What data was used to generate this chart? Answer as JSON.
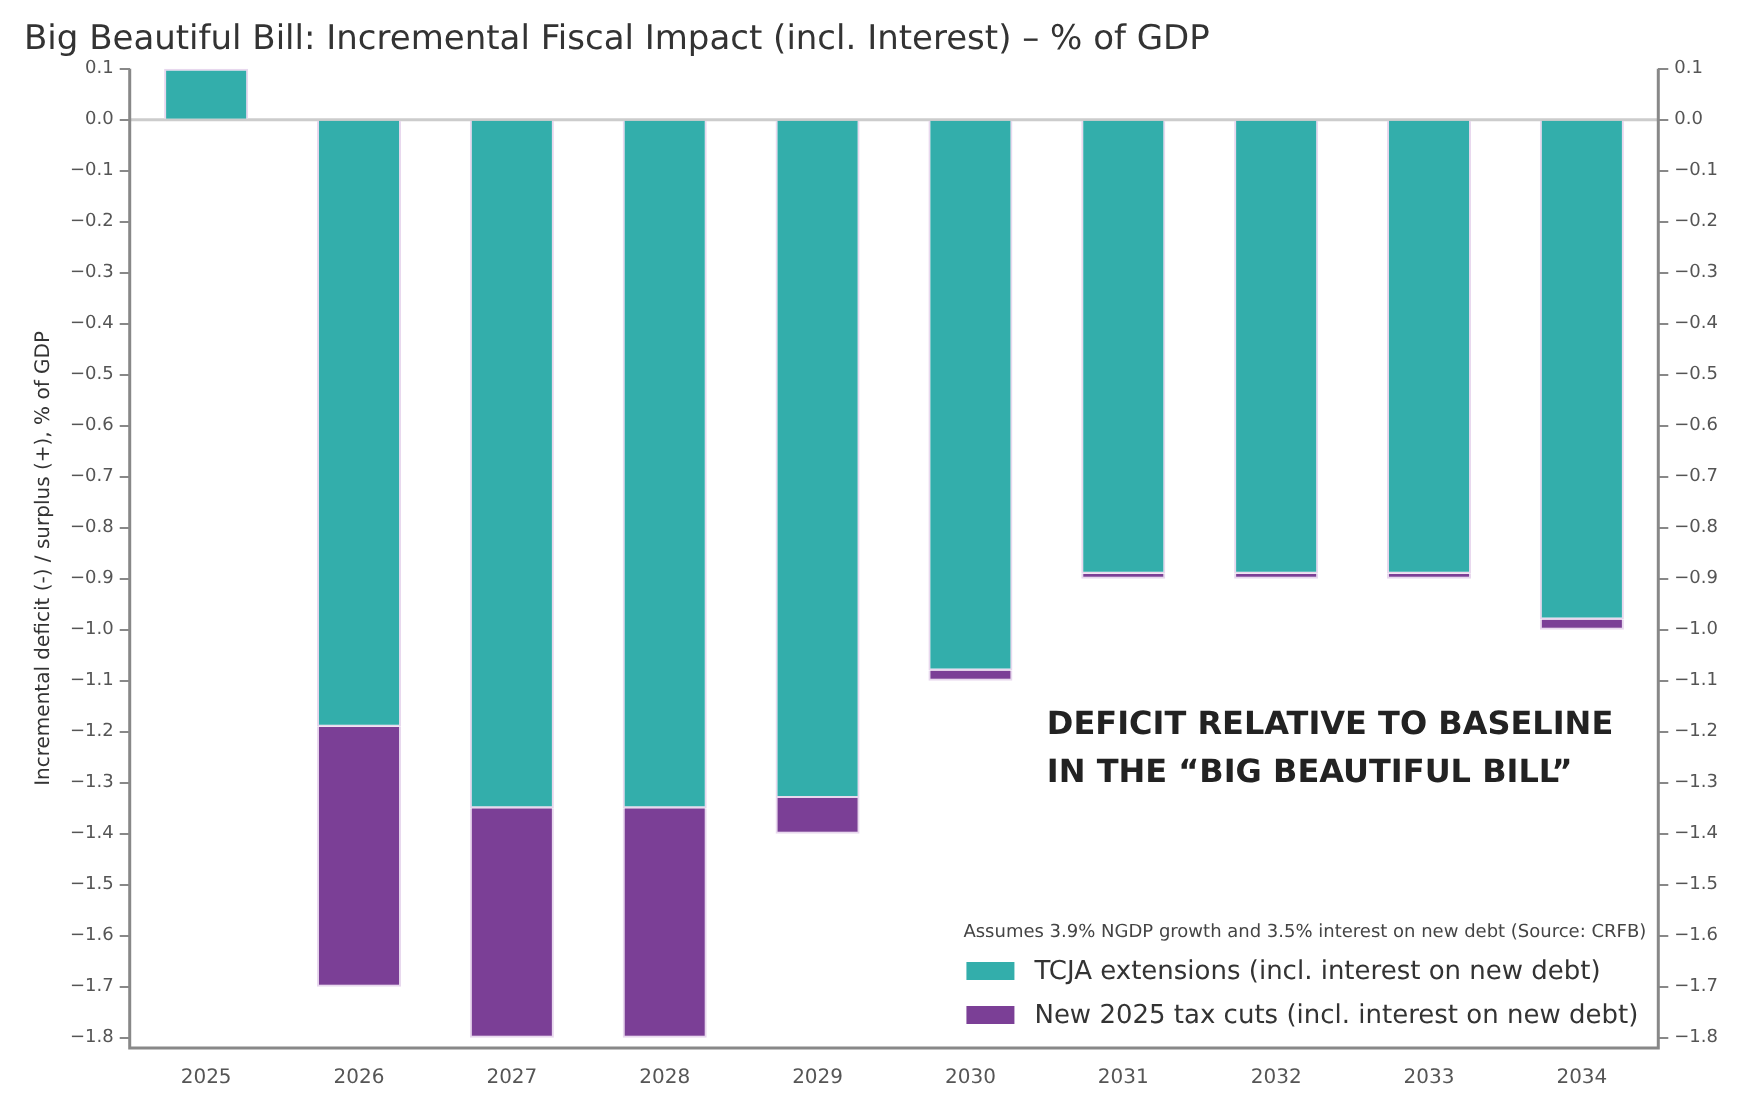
{
  "chart_data": {
    "type": "bar",
    "title": "Big Beautiful Bill: Incremental Fiscal Impact (incl. Interest) – % of GDP",
    "ylabel": "Incremental deficit (-) / surplus (+), % of GDP",
    "legend_title": "Assumes 3.9% NGDP growth and 3.5% interest on new debt (Source: CRFB)",
    "annotations": [
      "DEFICIT RELATIVE TO BASELINE\nIN THE “BIG BEAUTIFUL BILL”"
    ],
    "categories": [
      "2025",
      "2026",
      "2027",
      "2028",
      "2029",
      "2030",
      "2031",
      "2032",
      "2033",
      "2034"
    ],
    "stacked": true,
    "series": [
      {
        "name": "TCJA extensions (incl. interest on new debt)",
        "color": "#33aeab",
        "values": [
          0.1,
          -1.19,
          -1.35,
          -1.35,
          -1.33,
          -1.08,
          -0.89,
          -0.89,
          -0.89,
          -0.98
        ]
      },
      {
        "name": "New 2025 tax cuts (incl. interest on new debt)",
        "color": "#7b3f96",
        "values": [
          null,
          -0.51,
          -0.45,
          -0.45,
          -0.07,
          -0.02,
          -0.01,
          -0.01,
          -0.01,
          -0.02
        ]
      }
    ],
    "ylim": [
      -1.82,
      0.1
    ],
    "yticks": [
      {
        "value": -1.8,
        "label": "−1.8"
      },
      {
        "value": -1.7,
        "label": "−1.7"
      },
      {
        "value": -1.6,
        "label": "−1.6"
      },
      {
        "value": -1.5,
        "label": "−1.5"
      },
      {
        "value": -1.4,
        "label": "−1.4"
      },
      {
        "value": -1.3,
        "label": "−1.3"
      },
      {
        "value": -1.2,
        "label": "−1.2"
      },
      {
        "value": -1.1,
        "label": "−1.1"
      },
      {
        "value": -1.0,
        "label": "−1.0"
      },
      {
        "value": -0.9,
        "label": "−0.9"
      },
      {
        "value": -0.8,
        "label": "−0.8"
      },
      {
        "value": -0.7,
        "label": "−0.7"
      },
      {
        "value": -0.6,
        "label": "−0.6"
      },
      {
        "value": -0.5,
        "label": "−0.5"
      },
      {
        "value": -0.4,
        "label": "−0.4"
      },
      {
        "value": -0.3,
        "label": "−0.3"
      },
      {
        "value": -0.2,
        "label": "−0.2"
      },
      {
        "value": -0.1,
        "label": "−0.1"
      },
      {
        "value": 0,
        "label": "0.0"
      },
      {
        "value": 0.1,
        "label": "0.1"
      }
    ],
    "y2lim": [
      -1.82,
      0.1
    ],
    "y2ticks": [
      {
        "value": -1.8,
        "label": "−1.8"
      },
      {
        "value": -1.7,
        "label": "−1.7"
      },
      {
        "value": -1.6,
        "label": "−1.6"
      },
      {
        "value": -1.5,
        "label": "−1.5"
      },
      {
        "value": -1.4,
        "label": "−1.4"
      },
      {
        "value": -1.3,
        "label": "−1.3"
      },
      {
        "value": -1.2,
        "label": "−1.2"
      },
      {
        "value": -1.1,
        "label": "−1.1"
      },
      {
        "value": -1.0,
        "label": "−1.0"
      },
      {
        "value": -0.9,
        "label": "−0.9"
      },
      {
        "value": -0.8,
        "label": "−0.8"
      },
      {
        "value": -0.7,
        "label": "−0.7"
      },
      {
        "value": -0.6,
        "label": "−0.6"
      },
      {
        "value": -0.5,
        "label": "−0.5"
      },
      {
        "value": -0.4,
        "label": "−0.4"
      },
      {
        "value": -0.3,
        "label": "−0.3"
      },
      {
        "value": -0.2,
        "label": "−0.2"
      },
      {
        "value": -0.1,
        "label": "−0.1"
      },
      {
        "value": 0,
        "label": "0.0"
      },
      {
        "value": 0.1,
        "label": "0.1"
      }
    ],
    "ref_lines": [
      {
        "axis": "y",
        "value": 0,
        "color": "#cccccc"
      }
    ],
    "grid": false,
    "legend": "bottom right"
  }
}
